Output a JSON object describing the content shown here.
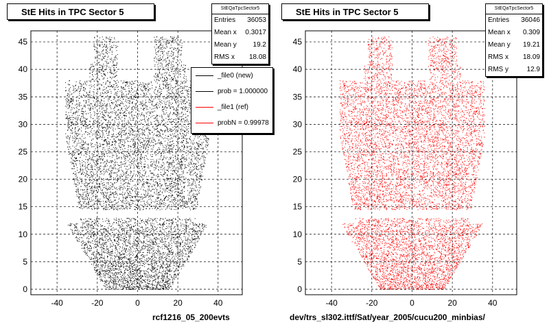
{
  "chart_data": [
    {
      "type": "scatter",
      "title": "StE Hits in TPC Sector 5",
      "caption": "rcf1216_05_200evts",
      "color": "#000000",
      "xlim": [
        -53,
        52
      ],
      "ylim": [
        -1,
        47
      ],
      "x_ticks": [
        -40,
        -20,
        0,
        20,
        40
      ],
      "y_ticks": [
        0,
        5,
        10,
        15,
        20,
        25,
        30,
        35,
        40,
        45
      ],
      "grid": true,
      "stats": {
        "name": "StEQaTpcSector5",
        "rows": [
          {
            "label": "Entries",
            "value": "36053"
          },
          {
            "label": "Mean x",
            "value": "0.3017"
          },
          {
            "label": "Mean y",
            "value": "19.2"
          },
          {
            "label": "RMS x",
            "value": "18.08"
          }
        ]
      },
      "legend": {
        "placement": "top-right",
        "entries": [
          {
            "label": "_file0 (new)",
            "color": "#000000"
          },
          {
            "label": "prob = 1.000000",
            "color": "#000000"
          },
          {
            "label": "_file1 (ref)",
            "color": "#ff0000"
          },
          {
            "label": "probN = 0.99978",
            "color": "#ff0000"
          }
        ]
      }
    },
    {
      "type": "scatter",
      "title": "StE Hits in TPC Sector 5",
      "caption": "dev/trs_sl302.ittf/Sat/year_2005/cucu200_minbias/",
      "color": "#ff0000",
      "xlim": [
        -53,
        52
      ],
      "ylim": [
        -1,
        47
      ],
      "x_ticks": [
        -40,
        -20,
        0,
        20,
        40
      ],
      "y_ticks": [
        0,
        5,
        10,
        15,
        20,
        25,
        30,
        35,
        40,
        45
      ],
      "grid": true,
      "stats": {
        "name": "StEQaTpcSector5",
        "rows": [
          {
            "label": "Entries",
            "value": "36046"
          },
          {
            "label": "Mean x",
            "value": "0.309"
          },
          {
            "label": "Mean y",
            "value": "19.21"
          },
          {
            "label": "RMS x",
            "value": "18.09"
          },
          {
            "label": "RMS y",
            "value": "12.9"
          }
        ]
      }
    }
  ]
}
